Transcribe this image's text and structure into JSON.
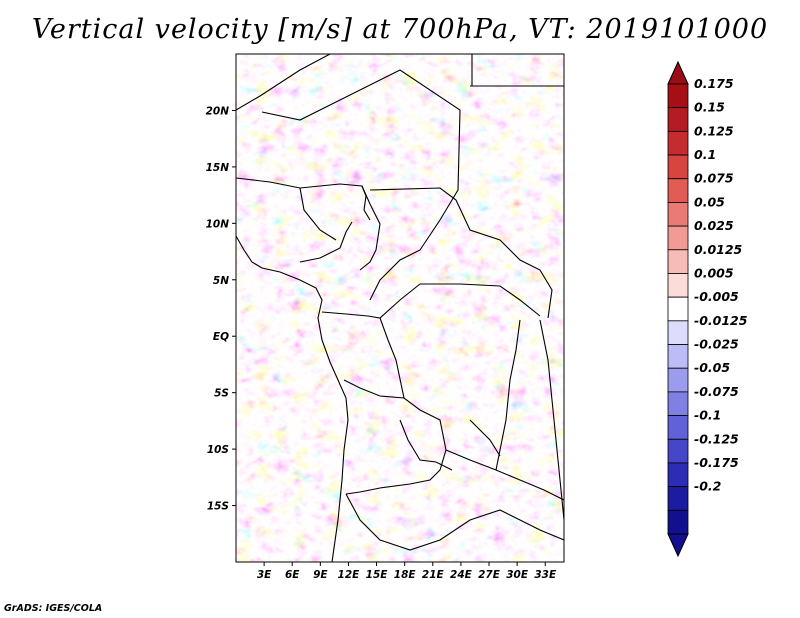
{
  "title": "Vertical velocity [m/s] at 700hPa, VT: 2019101000",
  "credit": "GrADS: IGES/COLA",
  "map": {
    "lon_range": [
      0,
      35
    ],
    "lat_range": [
      -20,
      25
    ],
    "lat_ticks": [
      {
        "value": 20,
        "label": "20N"
      },
      {
        "value": 15,
        "label": "15N"
      },
      {
        "value": 10,
        "label": "10N"
      },
      {
        "value": 5,
        "label": "5N"
      },
      {
        "value": 0,
        "label": "EQ"
      },
      {
        "value": -5,
        "label": "5S"
      },
      {
        "value": -10,
        "label": "10S"
      },
      {
        "value": -15,
        "label": "15S"
      }
    ],
    "lon_ticks": [
      {
        "value": 3,
        "label": "3E"
      },
      {
        "value": 6,
        "label": "6E"
      },
      {
        "value": 9,
        "label": "9E"
      },
      {
        "value": 12,
        "label": "12E"
      },
      {
        "value": 15,
        "label": "15E"
      },
      {
        "value": 18,
        "label": "18E"
      },
      {
        "value": 21,
        "label": "21E"
      },
      {
        "value": 24,
        "label": "24E"
      },
      {
        "value": 27,
        "label": "27E"
      },
      {
        "value": 30,
        "label": "30E"
      },
      {
        "value": 33,
        "label": "33E"
      }
    ]
  },
  "colorbar": {
    "levels": [
      {
        "label": "0.175",
        "color": "#a50f15"
      },
      {
        "label": "0.15",
        "color": "#b31c22"
      },
      {
        "label": "0.125",
        "color": "#c52c30"
      },
      {
        "label": "0.1",
        "color": "#d6453f"
      },
      {
        "label": "0.075",
        "color": "#e05c55"
      },
      {
        "label": "0.05",
        "color": "#ea7b74"
      },
      {
        "label": "0.025",
        "color": "#f29b95"
      },
      {
        "label": "0.0125",
        "color": "#f8bcb6"
      },
      {
        "label": "0.005",
        "color": "#fcdcd8"
      },
      {
        "label": "-0.005",
        "color": "#ffffff"
      },
      {
        "label": "-0.0125",
        "color": "#dcdcfc"
      },
      {
        "label": "-0.025",
        "color": "#bcbcf6"
      },
      {
        "label": "-0.05",
        "color": "#9c9cee"
      },
      {
        "label": "-0.075",
        "color": "#7f7fe4"
      },
      {
        "label": "-0.1",
        "color": "#6262d8"
      },
      {
        "label": "-0.125",
        "color": "#4646c8"
      },
      {
        "label": "-0.175",
        "color": "#2c2cb4"
      },
      {
        "label": "-0.2",
        "color": "#1c1ca0"
      }
    ],
    "top_color": "#9a0d14",
    "bottom_color": "#12108e"
  }
}
